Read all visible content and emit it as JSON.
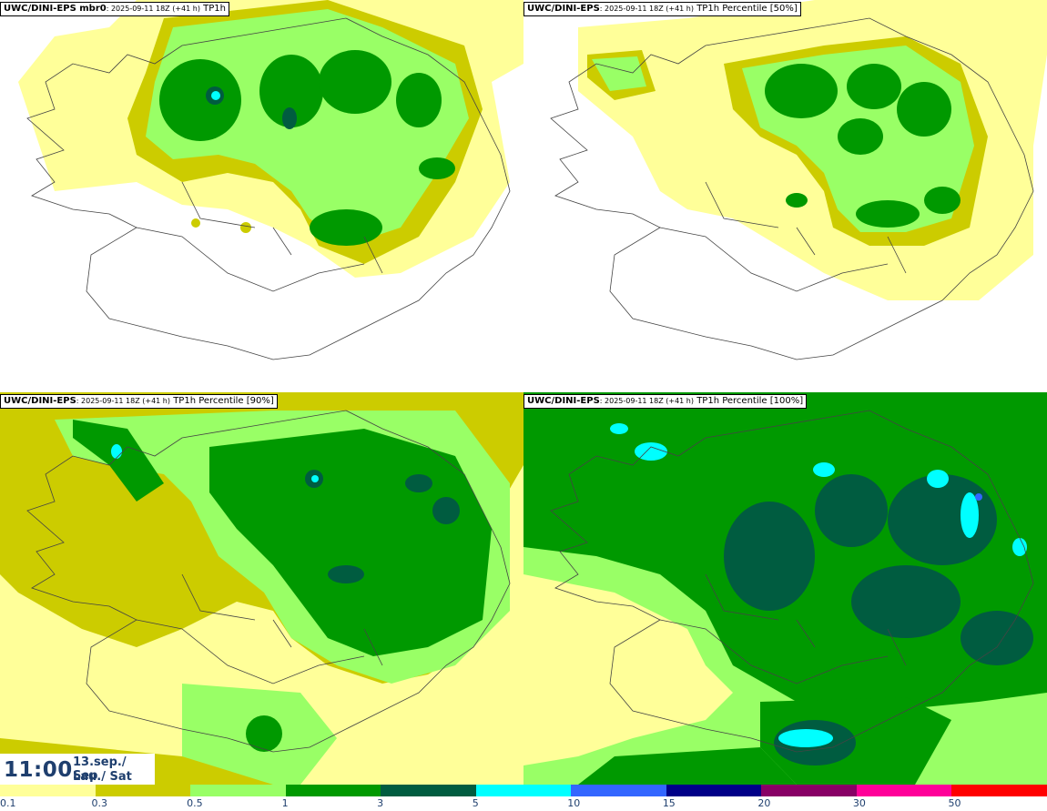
{
  "panels": [
    {
      "model": "UWC/DINI-EPS mbr0",
      "run": "2025-09-11 18Z (+41 h)",
      "param": "TP1h"
    },
    {
      "model": "UWC/DINI-EPS",
      "run": "2025-09-11 18Z (+41 h)",
      "param": "TP1h Percentile [50%]"
    },
    {
      "model": "UWC/DINI-EPS",
      "run": "2025-09-11 18Z (+41 h)",
      "param": "TP1h Percentile [90%]"
    },
    {
      "model": "UWC/DINI-EPS",
      "run": "2025-09-11 18Z (+41 h)",
      "param": "TP1h Percentile [100%]"
    }
  ],
  "valid_time": {
    "time": "11:00",
    "date_line1": "13.sep./ Sep",
    "date_line2": "Lau./ Sat"
  },
  "legend": {
    "colors": [
      "#ffff99",
      "#cccc00",
      "#99ff66",
      "#009900",
      "#005c40",
      "#00ffff",
      "#3366ff",
      "#000088",
      "#880066",
      "#ff0099",
      "#ff0000"
    ],
    "tick_labels": [
      "0.1",
      "0.3",
      "0.5",
      "1",
      "3",
      "5",
      "10",
      "15",
      "20",
      "30",
      "50"
    ]
  }
}
